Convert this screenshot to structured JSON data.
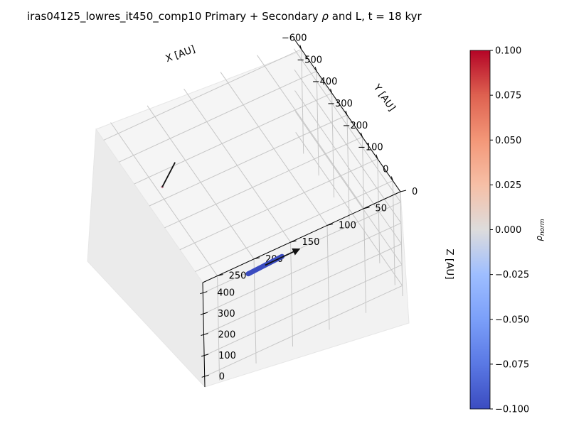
{
  "chart_data": {
    "type": "scatter",
    "projection": "3d",
    "title_prefix": "iras04125_lowres_it450_comp10 Primary + Secondary ",
    "title_rho": "ρ",
    "title_suffix": " and L, t = 18 kyr",
    "xlabel": "X [AU]",
    "ylabel": "Y [AU]",
    "zlabel": "Z [AU]",
    "x_ticks": [
      -600,
      -500,
      -400,
      -300,
      -200,
      -100,
      0
    ],
    "y_ticks": [
      0,
      50,
      100,
      150,
      200,
      250
    ],
    "z_ticks": [
      0,
      100,
      200,
      300,
      400
    ],
    "xlim": [
      -650,
      50
    ],
    "ylim": [
      0,
      270
    ],
    "zlim": [
      -50,
      450
    ],
    "grid": true,
    "colormap": "coolwarm",
    "colorbar": {
      "label_base": "ρ",
      "label_sub": "norm",
      "ticks": [
        "0.100",
        "0.075",
        "0.050",
        "0.025",
        "0.000",
        "−0.025",
        "−0.050",
        "−0.075",
        "−0.100"
      ],
      "min": -0.1,
      "max": 0.1
    },
    "series": [
      {
        "points": [
          {
            "x": -60,
            "y": 140,
            "z": 250
          },
          {
            "x": -75,
            "y": 160,
            "z": 225
          },
          {
            "x": -90,
            "y": 180,
            "z": 200
          }
        ],
        "arrow": {
          "x0": -75,
          "y0": 160,
          "z0": 225,
          "x1": -40,
          "y1": 120,
          "z1": 275
        }
      },
      {
        "points": [
          {
            "x": -560,
            "y": 200,
            "z": 155
          }
        ],
        "arrow": {
          "x0": -560,
          "y0": 200,
          "z0": 155,
          "x1": -570,
          "y1": 180,
          "z1": 230
        }
      }
    ]
  }
}
